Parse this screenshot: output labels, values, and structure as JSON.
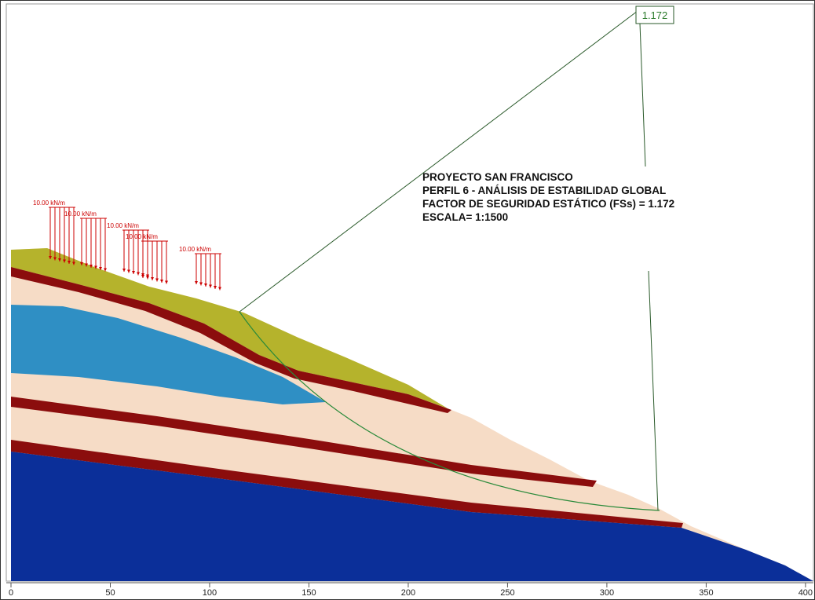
{
  "factor_label": "1.172",
  "notes": [
    "PROYECTO SAN FRANCISCO",
    "PERFIL 6 - ANÁLISIS DE ESTABILIDAD GLOBAL",
    "FACTOR DE SEGURIDAD ESTÁTICO (FSs) = 1.172",
    "ESCALA= 1:1500"
  ],
  "loads": [
    "10.00 kN/m",
    "10.00 kN/m",
    "10.00 kN/m",
    "10.00 kN/m",
    "10.00 kN/m"
  ],
  "axis": {
    "xlim": [
      0,
      404
    ],
    "xticks": [
      0,
      50,
      100,
      150,
      200,
      250,
      300,
      350,
      400
    ]
  }
}
